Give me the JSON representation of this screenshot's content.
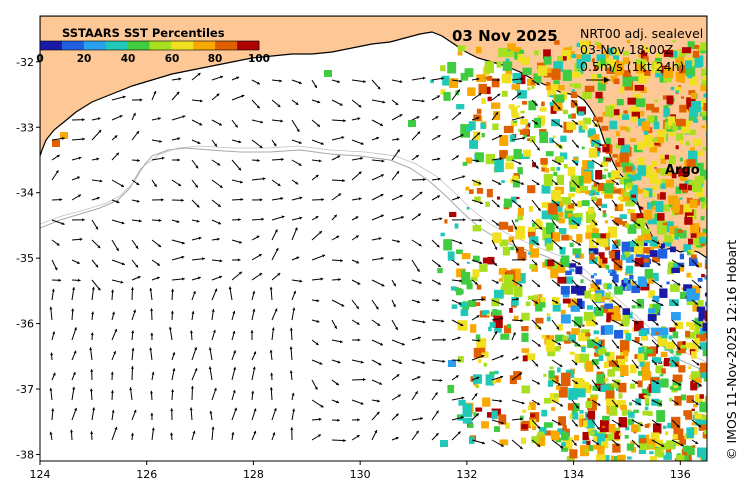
{
  "map": {
    "title": "03 Nov 2025",
    "legend_title": "SSTAARS SST Percentiles",
    "colorbar_ticks": [
      "0",
      "20",
      "40",
      "60",
      "80",
      "100"
    ],
    "colorbar_colors": [
      "#1a1aa8",
      "#2060e0",
      "#2aa0ee",
      "#20c8b8",
      "#40cc40",
      "#a8e020",
      "#f0e020",
      "#f8a800",
      "#e06000",
      "#b00000"
    ],
    "info_lines": [
      "NRT00 adj. sealevel",
      "03-Nov 18:00Z",
      "0.5m/s (1kt 24h)"
    ],
    "argo_label": "Argo",
    "credit": "© IMOS 11-Nov-2025 12:16 Hobart",
    "x_ticks": [
      "124",
      "126",
      "128",
      "130",
      "132",
      "134",
      "136"
    ],
    "y_ticks": [
      "-32",
      "-33",
      "-34",
      "-35",
      "-36",
      "-37",
      "-38"
    ],
    "lon_range": [
      124,
      136.5
    ],
    "lat_range": [
      -38.1,
      -31.3
    ],
    "colors": {
      "land": "#fdc896",
      "ocean": "#ffffff",
      "argo": "#ff00ff",
      "contour": "#aaaaaa"
    }
  }
}
